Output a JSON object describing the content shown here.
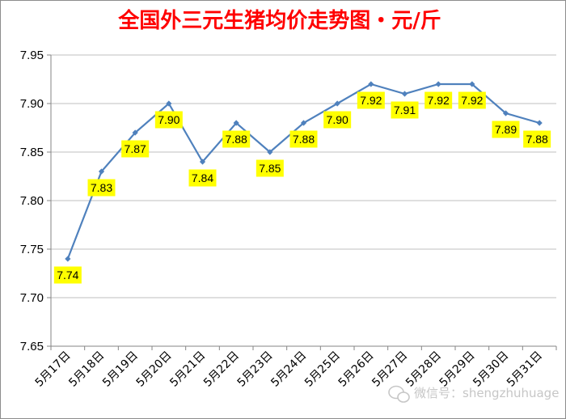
{
  "chart_data": {
    "type": "line",
    "title": "全国外三元生猪均价走势图・元/斤",
    "xlabel": "",
    "ylabel": "",
    "categories": [
      "5月17日",
      "5月18日",
      "5月19日",
      "5月20日",
      "5月21日",
      "5月22日",
      "5月23日",
      "5月24日",
      "5月25日",
      "5月26日",
      "5月27日",
      "5月28日",
      "5月29日",
      "5月30日",
      "5月31日"
    ],
    "series": [
      {
        "values": [
          7.74,
          7.83,
          7.87,
          7.9,
          7.84,
          7.88,
          7.85,
          7.88,
          7.9,
          7.92,
          7.91,
          7.92,
          7.92,
          7.89,
          7.88
        ]
      }
    ],
    "data_labels": [
      "7.74",
      "7.83",
      "7.87",
      "7.90",
      "7.84",
      "7.88",
      "7.85",
      "7.88",
      "7.90",
      "7.92",
      "7.91",
      "7.92",
      "7.92",
      "7.89",
      "7.88"
    ],
    "yticks": [
      "7.65",
      "7.70",
      "7.75",
      "7.80",
      "7.85",
      "7.90",
      "7.95"
    ],
    "ylim": [
      7.65,
      7.95
    ],
    "grid": "horizontal",
    "legend": "none",
    "colors": {
      "line": "#4f81bd",
      "marker": "#4f81bd",
      "label_bg": "#ffff00",
      "title": "#ff0000",
      "grid": "#bfbfbf"
    }
  },
  "watermark": {
    "text": "微信号：shengzhuhuage",
    "icon": "wechat-icon"
  }
}
